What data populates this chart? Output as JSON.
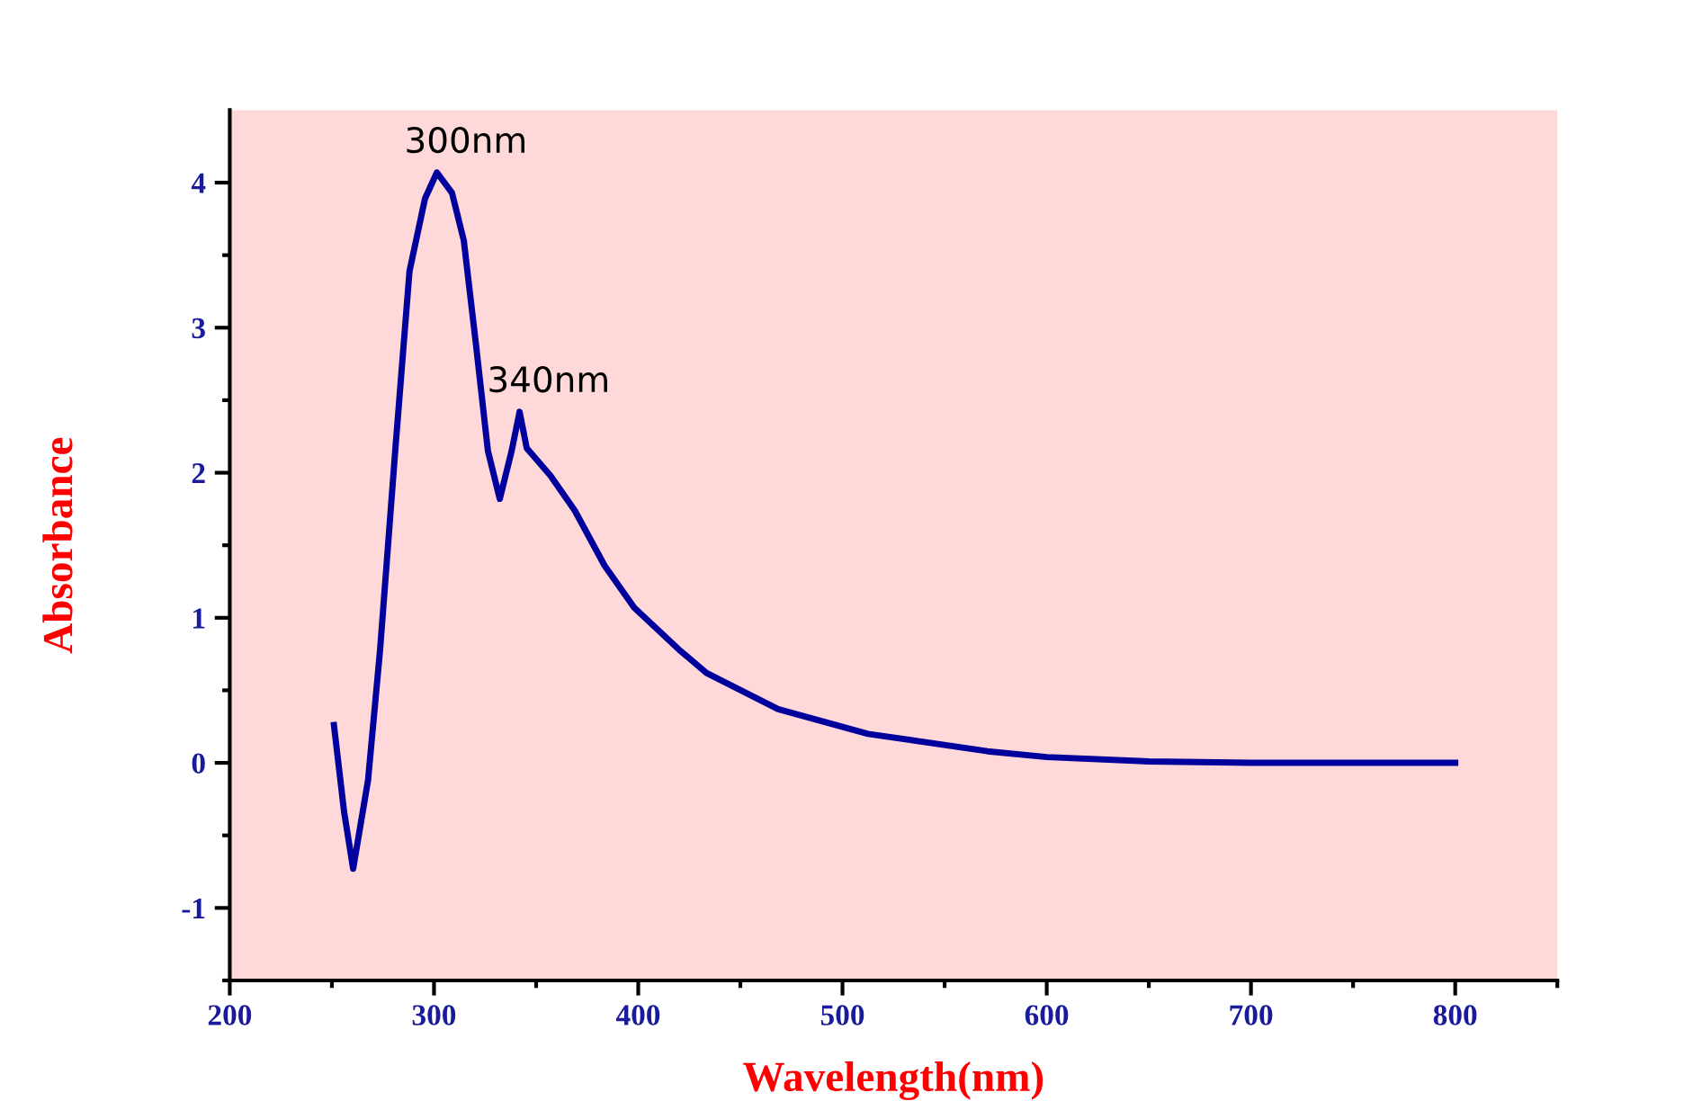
{
  "chart_data": {
    "type": "line",
    "xlabel": "Wavelength(nm)",
    "ylabel": "Absorbance",
    "series": [
      {
        "color": "#00009c",
        "x": [
          251,
          256,
          260.4,
          267.7,
          273.6,
          281,
          288,
          295.6,
          301.4,
          308.8,
          314.6,
          320.5,
          326.4,
          332.2,
          338,
          341.9,
          345.4,
          357,
          368.9,
          383.5,
          398,
          420,
          433.4,
          468.5,
          512.5,
          571,
          600,
          650,
          700,
          750,
          800
        ],
        "values": [
          0.26,
          -0.34,
          -0.73,
          -0.12,
          0.78,
          2.15,
          3.39,
          3.89,
          4.07,
          3.93,
          3.6,
          2.89,
          2.15,
          1.82,
          2.15,
          2.42,
          2.17,
          1.98,
          1.74,
          1.36,
          1.07,
          0.78,
          0.62,
          0.37,
          0.2,
          0.08,
          0.04,
          0.01,
          0,
          0,
          0
        ]
      }
    ],
    "annotations": [
      {
        "text": "300nm",
        "x": 301.4,
        "y": 4.07
      },
      {
        "text": "340nm",
        "x": 341.9,
        "y": 2.42
      }
    ],
    "xlim": [
      200,
      850
    ],
    "xticks": [
      200,
      300,
      400,
      500,
      600,
      700,
      800
    ],
    "ylim": [
      -1.5,
      4.5
    ],
    "yticks": [
      -1,
      0,
      1,
      2,
      3,
      4
    ],
    "grid": false,
    "legend": false,
    "marker": "none",
    "line_style": "solid"
  }
}
